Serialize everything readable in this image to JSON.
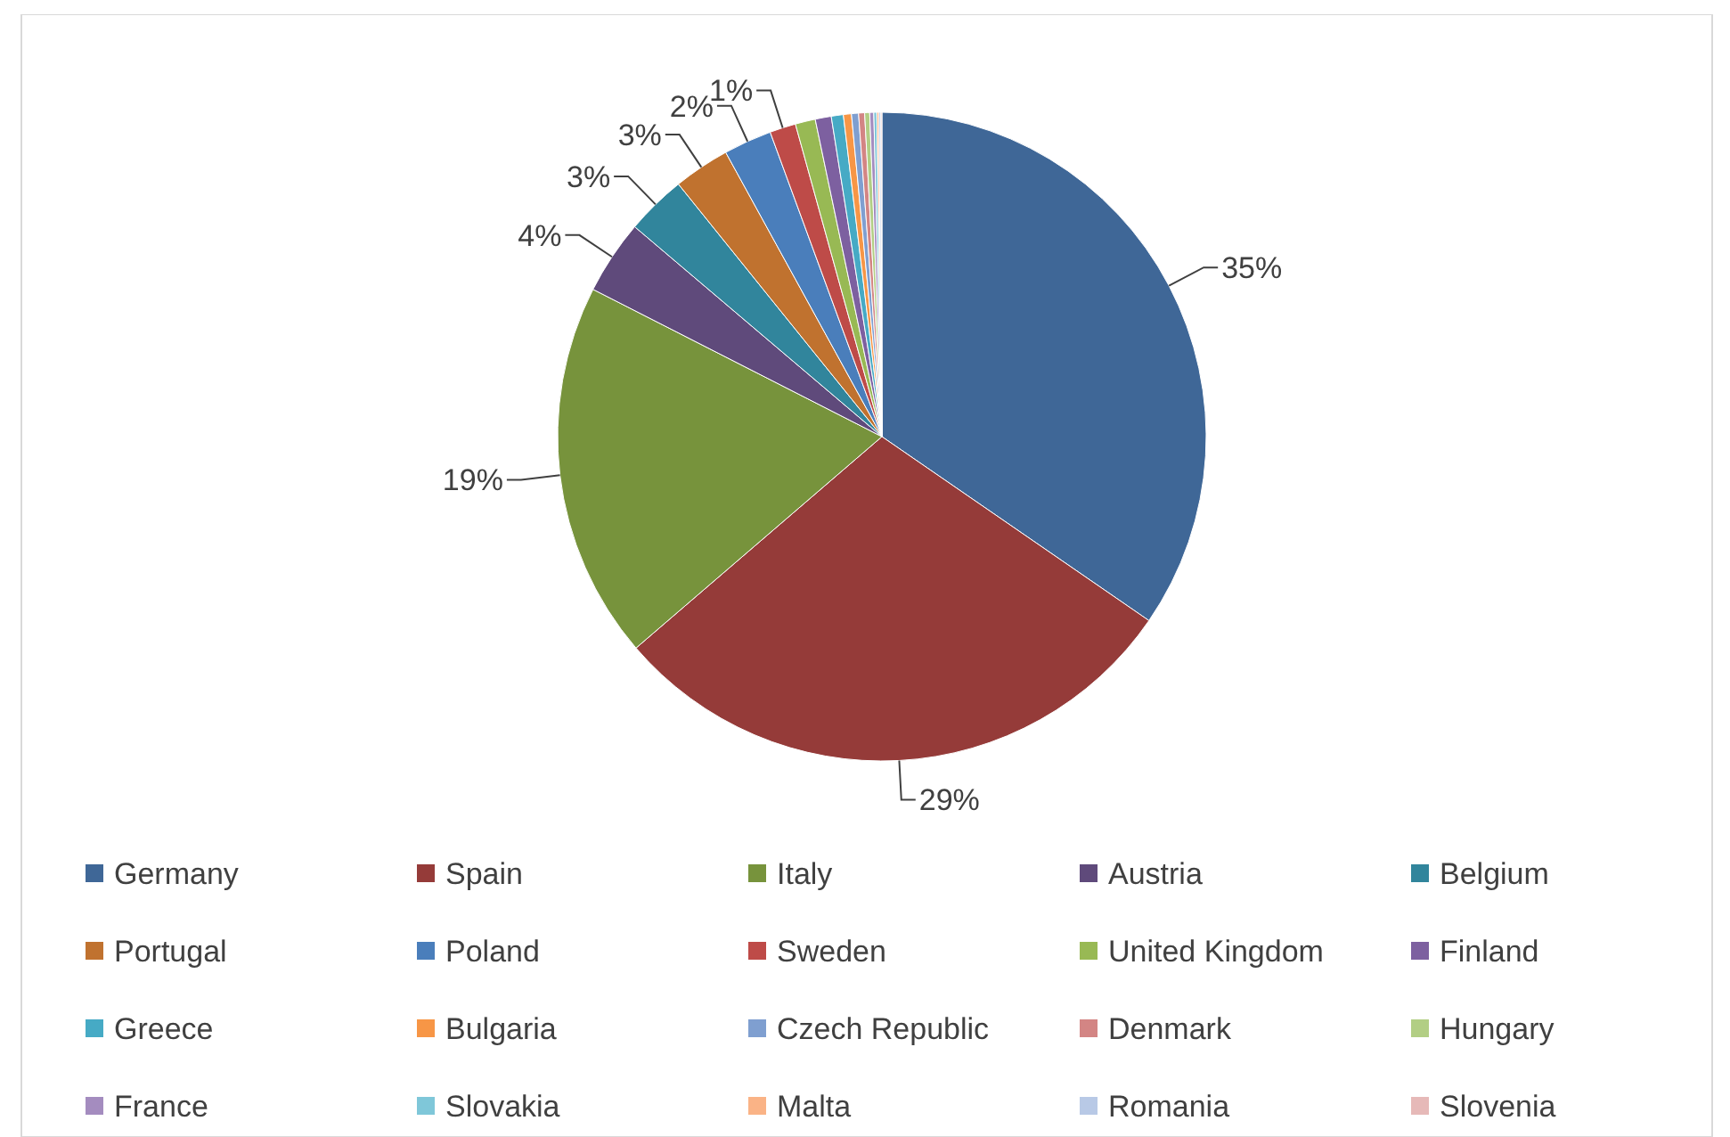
{
  "chart_data": {
    "type": "pie",
    "categories": [
      "Germany",
      "Spain",
      "Italy",
      "Austria",
      "Belgium",
      "Portugal",
      "Poland",
      "Sweden",
      "United Kingdom",
      "Finland",
      "Greece",
      "Bulgaria",
      "Czech Republic",
      "Denmark",
      "Hungary",
      "France",
      "Slovakia",
      "Malta",
      "Romania",
      "Slovenia"
    ],
    "values": [
      34.6,
      29.1,
      18.8,
      3.7,
      3.0,
      2.8,
      2.4,
      1.3,
      1.0,
      0.8,
      0.6,
      0.4,
      0.35,
      0.3,
      0.25,
      0.2,
      0.15,
      0.1,
      0.1,
      0.05
    ],
    "value_labels": [
      "35%",
      "29%",
      "19%",
      "4%",
      "3%",
      "3%",
      "2%",
      "1%",
      null,
      null,
      null,
      null,
      null,
      null,
      null,
      null,
      null,
      null,
      null,
      null
    ],
    "colors": [
      "#3f6797",
      "#953b39",
      "#77933c",
      "#5f4a7b",
      "#31859c",
      "#c0722f",
      "#4a7ebb",
      "#be4b48",
      "#98b954",
      "#7d60a0",
      "#46aac5",
      "#f79646",
      "#7f9fd0",
      "#d38584",
      "#b2ce84",
      "#a48cbf",
      "#7fc7d9",
      "#fab386",
      "#b8c9e6",
      "#e6b9b8"
    ],
    "legend": "bottom"
  }
}
